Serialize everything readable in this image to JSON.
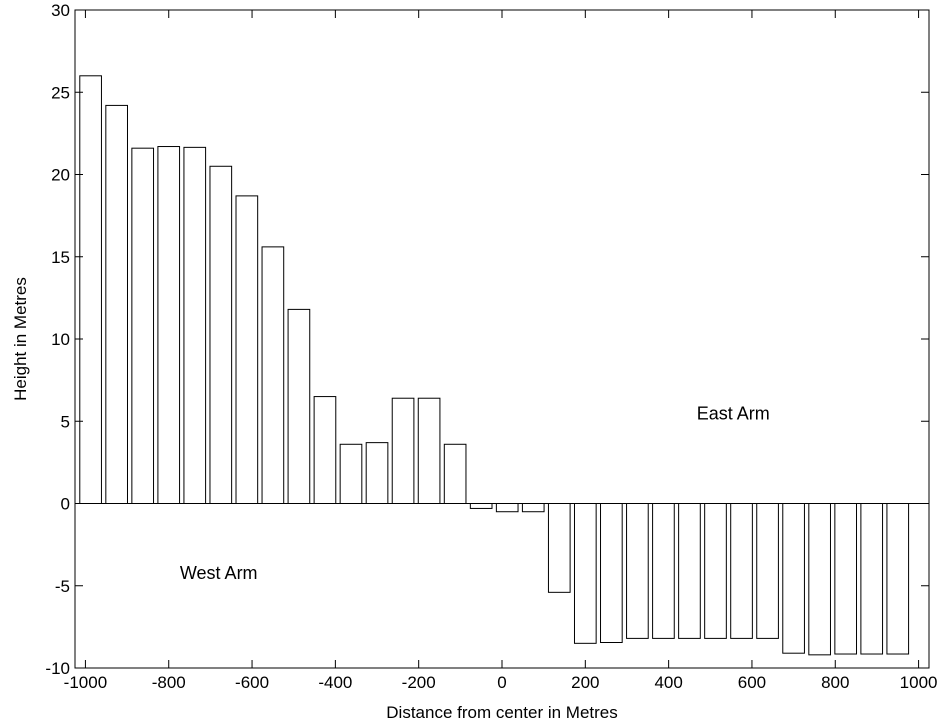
{
  "chart_data": {
    "type": "bar",
    "title": "",
    "xlabel": "Distance from center in Metres",
    "ylabel": "Height in Metres",
    "xlim": [
      -1025,
      1025
    ],
    "ylim": [
      -10,
      30
    ],
    "xticks": [
      "-1000",
      "-800",
      "-600",
      "-400",
      "-200",
      "0",
      "200",
      "400",
      "600",
      "800",
      "1000"
    ],
    "yticks": [
      "-10",
      "-5",
      "0",
      "5",
      "10",
      "15",
      "20",
      "25",
      "30"
    ],
    "bar_width": 52,
    "grid": false,
    "colors": {
      "bar_fill": "#ffffff",
      "bar_stroke": "#000000"
    },
    "annotations": [
      {
        "text": "East Arm",
        "x": 555,
        "y": 5.1
      },
      {
        "text": "West Arm",
        "x": -680,
        "y": -4.6
      }
    ],
    "x": [
      -987.5,
      -925,
      -862.5,
      -800,
      -737.5,
      -675,
      -612.5,
      -550,
      -487.5,
      -425,
      -362.5,
      -300,
      -237.5,
      -175,
      -112.5,
      -50,
      12.5,
      75,
      137.5,
      200,
      262.5,
      325,
      387.5,
      450,
      512.5,
      575,
      637.5,
      700,
      762.5,
      825,
      887.5,
      950
    ],
    "values": [
      26.0,
      24.2,
      21.6,
      21.7,
      21.65,
      20.5,
      18.7,
      15.6,
      11.8,
      6.5,
      3.6,
      3.7,
      6.4,
      6.4,
      3.6,
      -0.3,
      -0.5,
      -0.5,
      -5.4,
      -8.5,
      -8.45,
      -8.2,
      -8.2,
      -8.2,
      -8.2,
      -8.2,
      -8.2,
      -9.1,
      -9.2,
      -9.15,
      -9.15,
      -9.15
    ]
  }
}
